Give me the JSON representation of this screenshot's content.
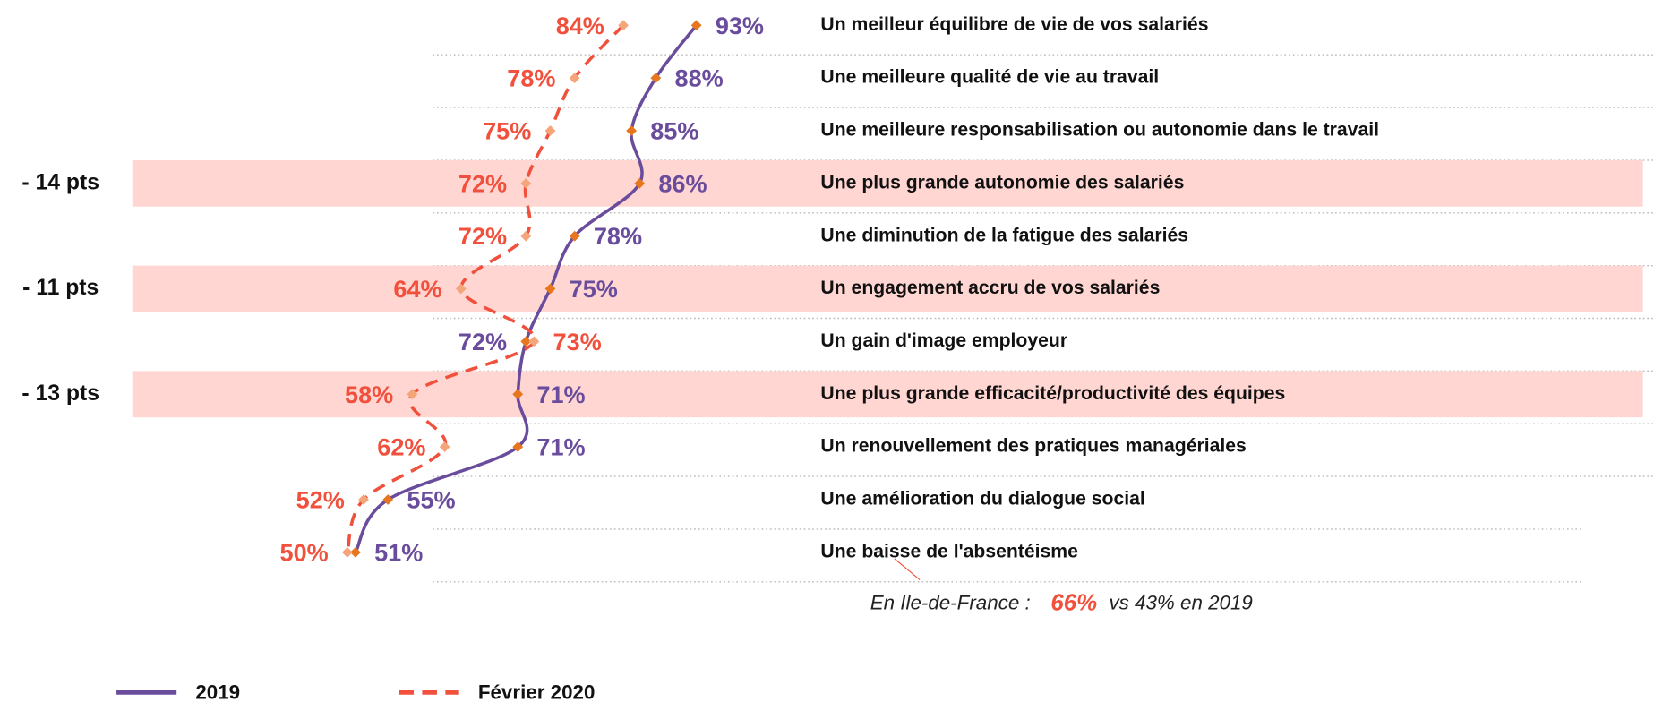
{
  "chart_data": {
    "type": "line",
    "categories": [
      "Un meilleur équilibre de vie de vos salariés",
      "Une meilleure qualité de vie au travail",
      "Une meilleure responsabilisation ou autonomie dans le travail",
      "Une plus grande autonomie des salariés",
      "Une diminution de la fatigue des salariés",
      "Un engagement accru de vos salariés",
      "Un gain d'image employeur",
      "Une plus grande efficacité/productivité des équipes",
      "Un renouvellement des pratiques managériales",
      "Une amélioration du dialogue social",
      "Une baisse de l'absentéisme"
    ],
    "series": [
      {
        "name": "2019",
        "color": "#6a4c9c",
        "marker_color": "#e8761e",
        "dash": false,
        "values": [
          93,
          88,
          85,
          86,
          78,
          75,
          72,
          71,
          71,
          55,
          51
        ],
        "value_labels": [
          "93%",
          "88%",
          "85%",
          "86%",
          "78%",
          "75%",
          "72%",
          "71%",
          "71%",
          "55%",
          "51%"
        ]
      },
      {
        "name": "Février 2020",
        "color": "#f0503c",
        "marker_color": "#f4a57a",
        "dash": true,
        "values": [
          84,
          78,
          75,
          72,
          72,
          64,
          73,
          58,
          62,
          52,
          50
        ],
        "value_labels": [
          "84%",
          "78%",
          "75%",
          "72%",
          "72%",
          "64%",
          "73%",
          "58%",
          "62%",
          "52%",
          "50%"
        ]
      }
    ],
    "xlim": [
      40,
      100
    ],
    "row_annotations": [
      null,
      null,
      null,
      "- 14 pts",
      null,
      "- 11 pts",
      null,
      "- 13 pts",
      null,
      null,
      null
    ],
    "highlight_color": "#ffd6d2",
    "note": {
      "prefix": "En Ile-de-France : ",
      "highlight": "66%",
      "suffix": " vs 43% en 2019"
    }
  }
}
